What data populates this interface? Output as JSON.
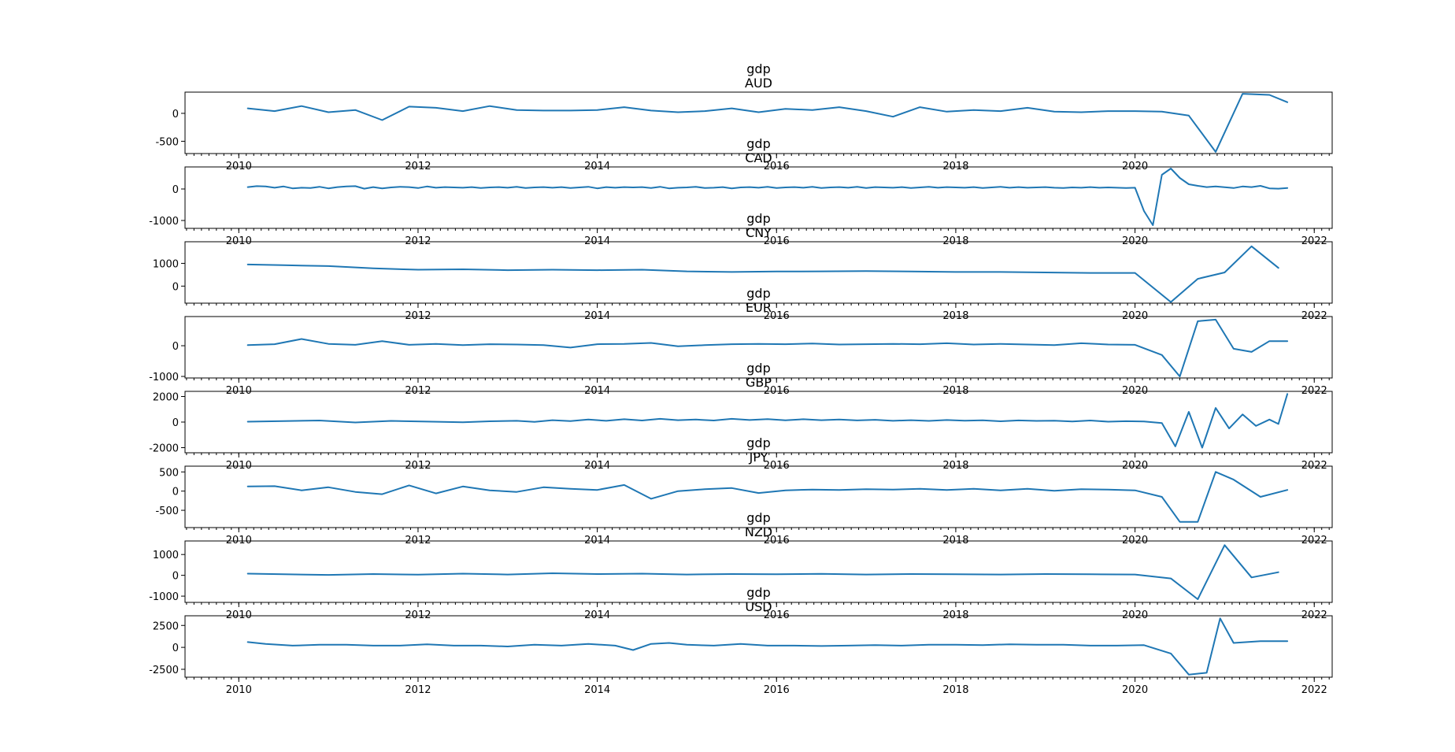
{
  "figure": {
    "series_color": "#1f77b4"
  },
  "chart_data": [
    {
      "type": "line",
      "title": "gdp",
      "subtitle": "AUD",
      "xlim": [
        2009.4,
        2022.2
      ],
      "ylim": [
        -720,
        380
      ],
      "yticks": [
        0,
        -500
      ],
      "xticks": [
        2010,
        2012,
        2014,
        2016,
        2018,
        2020
      ],
      "series": [
        {
          "x": [
            2010.1,
            2010.4,
            2010.7,
            2011.0,
            2011.3,
            2011.6,
            2011.9,
            2012.2,
            2012.5,
            2012.8,
            2013.1,
            2013.4,
            2013.7,
            2014.0,
            2014.3,
            2014.6,
            2014.9,
            2015.2,
            2015.5,
            2015.8,
            2016.1,
            2016.4,
            2016.7,
            2017.0,
            2017.3,
            2017.6,
            2017.9,
            2018.2,
            2018.5,
            2018.8,
            2019.1,
            2019.4,
            2019.7,
            2020.0,
            2020.3,
            2020.6,
            2020.9,
            2021.2,
            2021.5,
            2021.7
          ],
          "y": [
            90,
            40,
            130,
            20,
            60,
            -120,
            120,
            100,
            40,
            130,
            60,
            50,
            50,
            60,
            110,
            50,
            20,
            40,
            90,
            20,
            80,
            60,
            110,
            40,
            -60,
            110,
            30,
            60,
            40,
            100,
            30,
            20,
            40,
            40,
            30,
            -40,
            -690,
            350,
            330,
            200
          ]
        }
      ]
    },
    {
      "type": "line",
      "title": "gdp",
      "subtitle": "CAD",
      "xlim": [
        2009.4,
        2022.2
      ],
      "ylim": [
        -1250,
        700
      ],
      "yticks": [
        0,
        -1000
      ],
      "xticks": [
        2010,
        2012,
        2014,
        2016,
        2018,
        2020,
        2022
      ],
      "series": [
        {
          "x": [
            2010.1,
            2010.2,
            2010.3,
            2010.4,
            2010.5,
            2010.6,
            2010.7,
            2010.8,
            2010.9,
            2011.0,
            2011.1,
            2011.2,
            2011.3,
            2011.4,
            2011.5,
            2011.6,
            2011.7,
            2011.8,
            2011.9,
            2012.0,
            2012.1,
            2012.2,
            2012.3,
            2012.4,
            2012.5,
            2012.6,
            2012.7,
            2012.8,
            2012.9,
            2013.0,
            2013.1,
            2013.2,
            2013.3,
            2013.4,
            2013.5,
            2013.6,
            2013.7,
            2013.8,
            2013.9,
            2014.0,
            2014.1,
            2014.2,
            2014.3,
            2014.4,
            2014.5,
            2014.6,
            2014.7,
            2014.8,
            2014.9,
            2015.0,
            2015.1,
            2015.2,
            2015.3,
            2015.4,
            2015.5,
            2015.6,
            2015.7,
            2015.8,
            2015.9,
            2016.0,
            2016.1,
            2016.2,
            2016.3,
            2016.4,
            2016.5,
            2016.6,
            2016.7,
            2016.8,
            2016.9,
            2017.0,
            2017.1,
            2017.2,
            2017.3,
            2017.4,
            2017.5,
            2017.6,
            2017.7,
            2017.8,
            2017.9,
            2018.0,
            2018.1,
            2018.2,
            2018.3,
            2018.4,
            2018.5,
            2018.6,
            2018.7,
            2018.8,
            2018.9,
            2019.0,
            2019.1,
            2019.2,
            2019.3,
            2019.4,
            2019.5,
            2019.6,
            2019.7,
            2019.8,
            2019.9,
            2020.0,
            2020.1,
            2020.2,
            2020.3,
            2020.4,
            2020.5,
            2020.6,
            2020.7,
            2020.8,
            2020.9,
            2021.1,
            2021.2,
            2021.3,
            2021.4,
            2021.5,
            2021.6,
            2021.7
          ],
          "y": [
            60,
            90,
            80,
            40,
            80,
            20,
            40,
            30,
            70,
            20,
            60,
            80,
            90,
            10,
            60,
            20,
            50,
            70,
            60,
            30,
            80,
            40,
            60,
            50,
            40,
            60,
            30,
            50,
            60,
            40,
            70,
            30,
            50,
            60,
            40,
            60,
            30,
            50,
            70,
            20,
            60,
            40,
            60,
            50,
            60,
            30,
            70,
            20,
            40,
            50,
            70,
            30,
            40,
            60,
            20,
            50,
            60,
            40,
            70,
            30,
            50,
            60,
            40,
            70,
            30,
            50,
            60,
            40,
            70,
            30,
            60,
            50,
            40,
            60,
            30,
            50,
            70,
            40,
            60,
            50,
            40,
            60,
            30,
            50,
            70,
            40,
            60,
            40,
            50,
            60,
            40,
            30,
            50,
            40,
            60,
            40,
            50,
            40,
            30,
            40,
            -700,
            -1150,
            450,
            650,
            350,
            150,
            100,
            60,
            80,
            30,
            80,
            60,
            100,
            20,
            10,
            30
          ]
        }
      ]
    },
    {
      "type": "line",
      "title": "gdp",
      "subtitle": "CNY",
      "xlim": [
        2009.4,
        2022.2
      ],
      "ylim": [
        -750,
        1950
      ],
      "yticks": [
        1000,
        0
      ],
      "xticks": [
        2012,
        2014,
        2016,
        2018,
        2020,
        2022
      ],
      "series": [
        {
          "x": [
            2010.1,
            2010.5,
            2011.0,
            2011.5,
            2012.0,
            2012.5,
            2013.0,
            2013.5,
            2014.0,
            2014.5,
            2015.0,
            2015.5,
            2016.0,
            2016.5,
            2017.0,
            2017.5,
            2018.0,
            2018.5,
            2019.0,
            2019.5,
            2020.0,
            2020.4,
            2020.7,
            2021.0,
            2021.3,
            2021.6
          ],
          "y": [
            950,
            920,
            880,
            780,
            720,
            740,
            700,
            720,
            700,
            720,
            650,
            620,
            640,
            650,
            660,
            640,
            620,
            620,
            600,
            580,
            580,
            -700,
            320,
            600,
            1750,
            800
          ]
        }
      ]
    },
    {
      "type": "line",
      "title": "gdp",
      "subtitle": "EUR",
      "xlim": [
        2009.4,
        2022.2
      ],
      "ylim": [
        -1050,
        950
      ],
      "yticks": [
        0,
        -1000
      ],
      "xticks": [
        2010,
        2012,
        2014,
        2016,
        2018,
        2020,
        2022
      ],
      "series": [
        {
          "x": [
            2010.1,
            2010.4,
            2010.7,
            2011.0,
            2011.3,
            2011.6,
            2011.9,
            2012.2,
            2012.5,
            2012.8,
            2013.1,
            2013.4,
            2013.7,
            2014.0,
            2014.3,
            2014.6,
            2014.9,
            2015.2,
            2015.5,
            2015.8,
            2016.1,
            2016.4,
            2016.7,
            2017.0,
            2017.3,
            2017.6,
            2017.9,
            2018.2,
            2018.5,
            2018.8,
            2019.1,
            2019.4,
            2019.7,
            2020.0,
            2020.3,
            2020.5,
            2020.7,
            2020.9,
            2021.1,
            2021.3,
            2021.5,
            2021.7
          ],
          "y": [
            20,
            50,
            220,
            60,
            30,
            150,
            30,
            60,
            20,
            50,
            40,
            20,
            -60,
            50,
            60,
            90,
            -20,
            20,
            50,
            60,
            50,
            70,
            40,
            50,
            60,
            50,
            80,
            40,
            60,
            40,
            20,
            80,
            40,
            30,
            -300,
            -1000,
            800,
            850,
            -100,
            -200,
            150,
            150
          ]
        }
      ]
    },
    {
      "type": "line",
      "title": "gdp",
      "subtitle": "GBP",
      "xlim": [
        2009.4,
        2022.2
      ],
      "ylim": [
        -2400,
        2400
      ],
      "yticks": [
        2000,
        0,
        -2000
      ],
      "xticks": [
        2010,
        2012,
        2014,
        2016,
        2018,
        2020,
        2022
      ],
      "series": [
        {
          "x": [
            2010.1,
            2010.5,
            2010.9,
            2011.3,
            2011.7,
            2012.1,
            2012.5,
            2012.8,
            2013.1,
            2013.3,
            2013.5,
            2013.7,
            2013.9,
            2014.1,
            2014.3,
            2014.5,
            2014.7,
            2014.9,
            2015.1,
            2015.3,
            2015.5,
            2015.7,
            2015.9,
            2016.1,
            2016.3,
            2016.5,
            2016.7,
            2016.9,
            2017.1,
            2017.3,
            2017.5,
            2017.7,
            2017.9,
            2018.1,
            2018.3,
            2018.5,
            2018.7,
            2018.9,
            2019.1,
            2019.3,
            2019.5,
            2019.7,
            2019.9,
            2020.1,
            2020.3,
            2020.45,
            2020.6,
            2020.75,
            2020.9,
            2021.05,
            2021.2,
            2021.35,
            2021.5,
            2021.6,
            2021.7
          ],
          "y": [
            30,
            80,
            120,
            -30,
            90,
            40,
            -20,
            60,
            100,
            20,
            150,
            80,
            200,
            100,
            220,
            120,
            250,
            150,
            200,
            120,
            250,
            160,
            230,
            140,
            220,
            150,
            200,
            130,
            180,
            100,
            150,
            90,
            160,
            110,
            140,
            60,
            130,
            90,
            110,
            50,
            120,
            30,
            70,
            50,
            -80,
            -1900,
            800,
            -2000,
            1100,
            -500,
            600,
            -300,
            200,
            -150,
            2200
          ]
        }
      ]
    },
    {
      "type": "line",
      "title": "gdp",
      "subtitle": "JPY",
      "xlim": [
        2009.4,
        2022.2
      ],
      "ylim": [
        -950,
        650
      ],
      "yticks": [
        500,
        0,
        -500
      ],
      "xticks": [
        2010,
        2012,
        2014,
        2016,
        2018,
        2020,
        2022
      ],
      "series": [
        {
          "x": [
            2010.1,
            2010.4,
            2010.7,
            2011.0,
            2011.3,
            2011.6,
            2011.9,
            2012.2,
            2012.5,
            2012.8,
            2013.1,
            2013.4,
            2013.7,
            2014.0,
            2014.3,
            2014.6,
            2014.9,
            2015.2,
            2015.5,
            2015.8,
            2016.1,
            2016.4,
            2016.7,
            2017.0,
            2017.3,
            2017.6,
            2017.9,
            2018.2,
            2018.5,
            2018.8,
            2019.1,
            2019.4,
            2019.7,
            2020.0,
            2020.3,
            2020.5,
            2020.7,
            2020.9,
            2021.1,
            2021.4,
            2021.7
          ],
          "y": [
            120,
            130,
            20,
            100,
            -20,
            -80,
            150,
            -60,
            120,
            20,
            -20,
            100,
            60,
            30,
            160,
            -200,
            0,
            50,
            80,
            -50,
            20,
            40,
            30,
            50,
            40,
            60,
            30,
            60,
            20,
            60,
            10,
            50,
            40,
            20,
            -150,
            -800,
            -800,
            500,
            300,
            -150,
            30
          ]
        }
      ]
    },
    {
      "type": "line",
      "title": "gdp",
      "subtitle": "NZD",
      "xlim": [
        2009.4,
        2022.2
      ],
      "ylim": [
        -1300,
        1650
      ],
      "yticks": [
        1000,
        0,
        -1000
      ],
      "xticks": [
        2010,
        2012,
        2014,
        2016,
        2018,
        2020,
        2022
      ],
      "series": [
        {
          "x": [
            2010.1,
            2010.5,
            2011.0,
            2011.5,
            2012.0,
            2012.5,
            2013.0,
            2013.5,
            2014.0,
            2014.5,
            2015.0,
            2015.5,
            2016.0,
            2016.5,
            2017.0,
            2017.5,
            2018.0,
            2018.5,
            2019.0,
            2019.5,
            2020.0,
            2020.4,
            2020.7,
            2021.0,
            2021.3,
            2021.6
          ],
          "y": [
            80,
            50,
            20,
            60,
            30,
            80,
            40,
            100,
            60,
            80,
            40,
            60,
            50,
            70,
            40,
            60,
            50,
            40,
            60,
            50,
            40,
            -150,
            -1150,
            1450,
            -100,
            150
          ]
        }
      ]
    },
    {
      "type": "line",
      "title": "gdp",
      "subtitle": "USD",
      "xlim": [
        2009.4,
        2022.2
      ],
      "ylim": [
        -3400,
        3600
      ],
      "yticks": [
        2500,
        0,
        -2500
      ],
      "xticks": [
        2010,
        2012,
        2014,
        2016,
        2018,
        2020,
        2022
      ],
      "series": [
        {
          "x": [
            2010.1,
            2010.3,
            2010.6,
            2010.9,
            2011.2,
            2011.5,
            2011.8,
            2012.1,
            2012.4,
            2012.7,
            2013.0,
            2013.3,
            2013.6,
            2013.9,
            2014.2,
            2014.4,
            2014.6,
            2014.8,
            2015.0,
            2015.3,
            2015.6,
            2015.9,
            2016.2,
            2016.5,
            2016.8,
            2017.1,
            2017.4,
            2017.7,
            2018.0,
            2018.3,
            2018.6,
            2018.9,
            2019.2,
            2019.5,
            2019.8,
            2020.1,
            2020.4,
            2020.6,
            2020.8,
            2020.95,
            2021.1,
            2021.4,
            2021.7
          ],
          "y": [
            600,
            400,
            200,
            300,
            300,
            200,
            200,
            350,
            200,
            200,
            100,
            300,
            200,
            400,
            200,
            -300,
            400,
            500,
            300,
            200,
            400,
            200,
            200,
            150,
            200,
            250,
            200,
            300,
            300,
            250,
            350,
            300,
            300,
            200,
            200,
            250,
            -700,
            -3100,
            -2900,
            3300,
            500,
            700,
            700
          ]
        }
      ]
    }
  ]
}
